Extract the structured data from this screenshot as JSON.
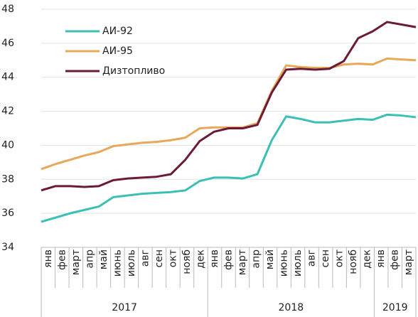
{
  "chart_data": {
    "type": "line",
    "categories": [
      "янв",
      "фев",
      "март",
      "апр",
      "май",
      "июнь",
      "июль",
      "авг",
      "сен",
      "окт",
      "нояб",
      "дек",
      "янв",
      "фев",
      "март",
      "апр",
      "май",
      "июнь",
      "июль",
      "авг",
      "сен",
      "окт",
      "нояб",
      "дек",
      "янв",
      "фев",
      "март"
    ],
    "groups": [
      {
        "label": "2017",
        "size": 12
      },
      {
        "label": "2018",
        "size": 12
      },
      {
        "label": "2019",
        "size": 3
      }
    ],
    "series": [
      {
        "name": "АИ-92",
        "color": "#3cbfb4",
        "values": [
          35.5,
          35.75,
          36.0,
          36.2,
          36.4,
          36.95,
          37.05,
          37.15,
          37.2,
          37.25,
          37.35,
          37.9,
          38.1,
          38.1,
          38.05,
          38.3,
          40.3,
          41.7,
          41.55,
          41.35,
          41.35,
          41.45,
          41.55,
          41.5,
          41.8,
          41.75,
          41.65
        ]
      },
      {
        "name": "АИ-95",
        "color": "#e8a85a",
        "values": [
          38.6,
          38.9,
          39.15,
          39.4,
          39.6,
          39.95,
          40.05,
          40.15,
          40.2,
          40.3,
          40.45,
          41.0,
          41.05,
          41.05,
          41.05,
          41.3,
          43.2,
          44.7,
          44.6,
          44.55,
          44.55,
          44.75,
          44.8,
          44.75,
          45.1,
          45.05,
          45.0
        ]
      },
      {
        "name": "Дизтопливо",
        "color": "#6b1a3a",
        "values": [
          37.35,
          37.6,
          37.6,
          37.55,
          37.6,
          37.95,
          38.05,
          38.1,
          38.15,
          38.3,
          39.15,
          40.25,
          40.8,
          41.0,
          41.0,
          41.2,
          43.1,
          44.45,
          44.5,
          44.45,
          44.5,
          44.95,
          46.3,
          46.7,
          47.25,
          47.1,
          46.95
        ]
      }
    ],
    "ylim": [
      34,
      48
    ],
    "yticks": [
      34,
      36,
      38,
      40,
      42,
      44,
      46,
      48
    ],
    "grid": true,
    "legend": "upper left"
  }
}
